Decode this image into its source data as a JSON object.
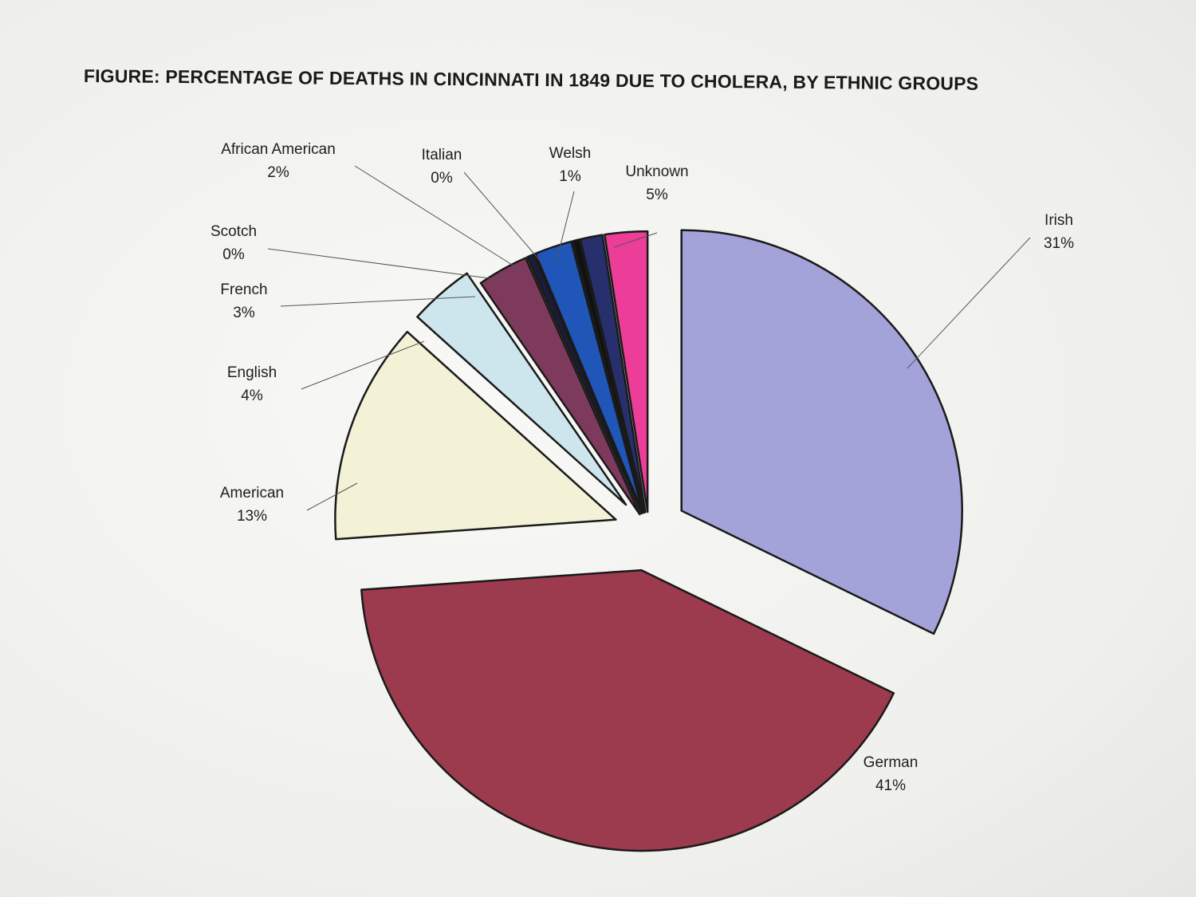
{
  "chart_data": {
    "type": "pie",
    "title": "FIGURE: PERCENTAGE OF DEATHS IN CINCINNATI IN 1849 DUE TO CHOLERA, BY ETHNIC GROUPS",
    "slices": [
      {
        "name": "Irish",
        "value": 31,
        "label": "31%",
        "color": "#a4a3d9"
      },
      {
        "name": "German",
        "value": 41,
        "label": "41%",
        "color": "#9c3a4e"
      },
      {
        "name": "American",
        "value": 13,
        "label": "13%",
        "color": "#f3f1d6"
      },
      {
        "name": "English",
        "value": 4,
        "label": "4%",
        "color": "#cde6ee"
      },
      {
        "name": "French",
        "value": 3,
        "label": "3%",
        "color": "#7e3a5c"
      },
      {
        "name": "Scotch",
        "value": 0,
        "label": "0%",
        "color": "#1b1b3a"
      },
      {
        "name": "African American",
        "value": 2,
        "label": "2%",
        "color": "#1f56b8"
      },
      {
        "name": "Italian",
        "value": 0,
        "label": "0%",
        "color": "#111111"
      },
      {
        "name": "Welsh",
        "value": 1,
        "label": "1%",
        "color": "#27306d"
      },
      {
        "name": "Unknown",
        "value": 5,
        "label": "5%",
        "color": "#ec3d98"
      }
    ],
    "legend": "none",
    "labels": "outside with leader lines"
  }
}
